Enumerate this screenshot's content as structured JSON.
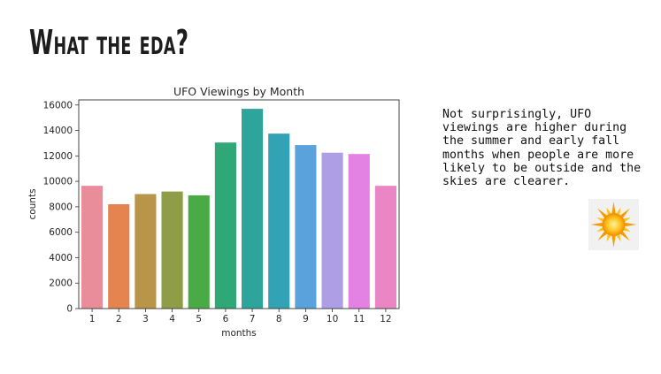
{
  "slide": {
    "title": "What the eda?",
    "note": "Not surprisingly, UFO viewings are higher during the summer and early fall months when people are more likely to be outside and the skies are clearer.",
    "note_icon": "sun-icon"
  },
  "chart_data": {
    "type": "bar",
    "title": "UFO Viewings by Month",
    "xlabel": "months",
    "ylabel": "counts",
    "categories": [
      "1",
      "2",
      "3",
      "4",
      "5",
      "6",
      "7",
      "8",
      "9",
      "10",
      "11",
      "12"
    ],
    "values": [
      9650,
      8200,
      9000,
      9200,
      8900,
      13050,
      15700,
      13750,
      12850,
      12250,
      12150,
      9650
    ],
    "ylim": [
      0,
      16400
    ],
    "yticks": [
      0,
      2000,
      4000,
      6000,
      8000,
      10000,
      12000,
      14000,
      16000
    ],
    "colors": [
      "#ea8d9a",
      "#e6844f",
      "#b89548",
      "#8f9d46",
      "#4aaa45",
      "#2fa776",
      "#2ea59b",
      "#31a3b4",
      "#5aa2dc",
      "#ad9ee5",
      "#e382e2",
      "#ea86c4"
    ],
    "grid": false,
    "legend": "none"
  }
}
